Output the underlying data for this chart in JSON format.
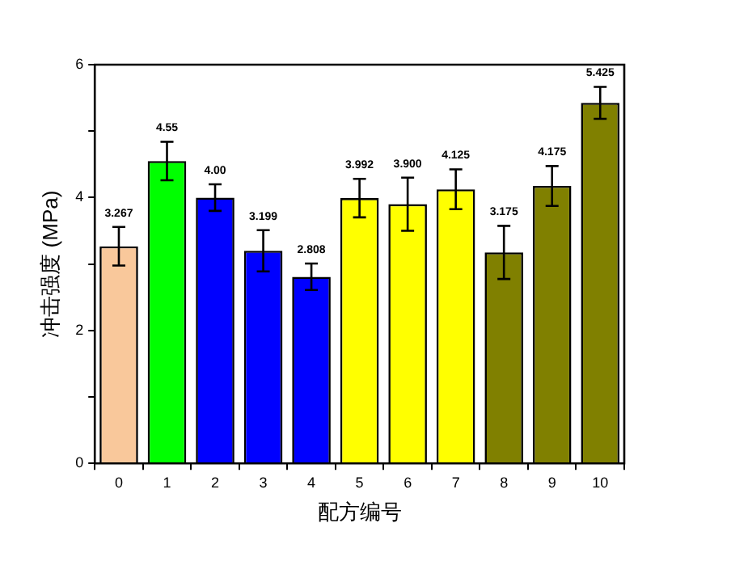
{
  "chart_data": {
    "type": "bar",
    "xlabel": "配方编号",
    "ylabel": "冲击强度 (MPa)",
    "categories": [
      "0",
      "1",
      "2",
      "3",
      "4",
      "5",
      "6",
      "7",
      "8",
      "9",
      "10"
    ],
    "values": [
      3.267,
      4.55,
      4.0,
      3.199,
      2.808,
      3.992,
      3.9,
      4.125,
      3.175,
      4.175,
      5.425
    ],
    "value_labels": [
      "3.267",
      "4.55",
      "4.00",
      "3.199",
      "2.808",
      "3.992",
      "3.900",
      "4.125",
      "3.175",
      "4.175",
      "5.425"
    ],
    "errors": [
      0.29,
      0.29,
      0.2,
      0.31,
      0.2,
      0.29,
      0.4,
      0.3,
      0.4,
      0.3,
      0.24
    ],
    "colors": [
      "#f9c89b",
      "#00ff00",
      "#0000ff",
      "#0000ff",
      "#0000ff",
      "#ffff00",
      "#ffff00",
      "#ffff00",
      "#808000",
      "#808000",
      "#808000"
    ],
    "ylim": [
      0,
      6
    ],
    "yticks": [
      0,
      {
        "value": 1,
        "label": null
      },
      2,
      {
        "value": 3,
        "label": null
      },
      4,
      {
        "value": 5,
        "label": null
      },
      6
    ],
    "grid": false,
    "legend": false
  }
}
